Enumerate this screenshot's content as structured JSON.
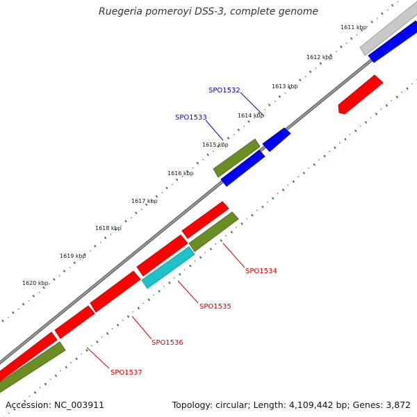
{
  "title": "Ruegeria pomeroyi DSS-3, complete genome",
  "footer": {
    "accession": "Accession: NC_003911",
    "summary": "Topology: circular; Length: 4,109,442 bp; Genes: 3,872"
  },
  "scale_labels": [
    "1611 kbp",
    "1612 kbp",
    "1613 kbp",
    "1614 kbp",
    "1615 kbp",
    "1616 kbp",
    "1617 kbp",
    "1618 kbp",
    "1619 kbp",
    "1620 kbp"
  ],
  "gene_labels": [
    {
      "name": "SPO1532",
      "color": "#0000cc"
    },
    {
      "name": "SPO1533",
      "color": "#0000cc"
    },
    {
      "name": "SPO1534",
      "color": "#cc0000"
    },
    {
      "name": "SPO1535",
      "color": "#cc0000"
    },
    {
      "name": "SPO1536",
      "color": "#cc0000"
    },
    {
      "name": "SPO1537",
      "color": "#cc0000"
    }
  ],
  "colors": {
    "backbone": "#888888",
    "tick": "#228b22",
    "red_gene": "#ff0000",
    "blue_gene": "#0000ff",
    "olive_gene": "#6b8e23",
    "cyan_gene": "#20c0c8",
    "grey_gene": "#c8c8c8"
  }
}
